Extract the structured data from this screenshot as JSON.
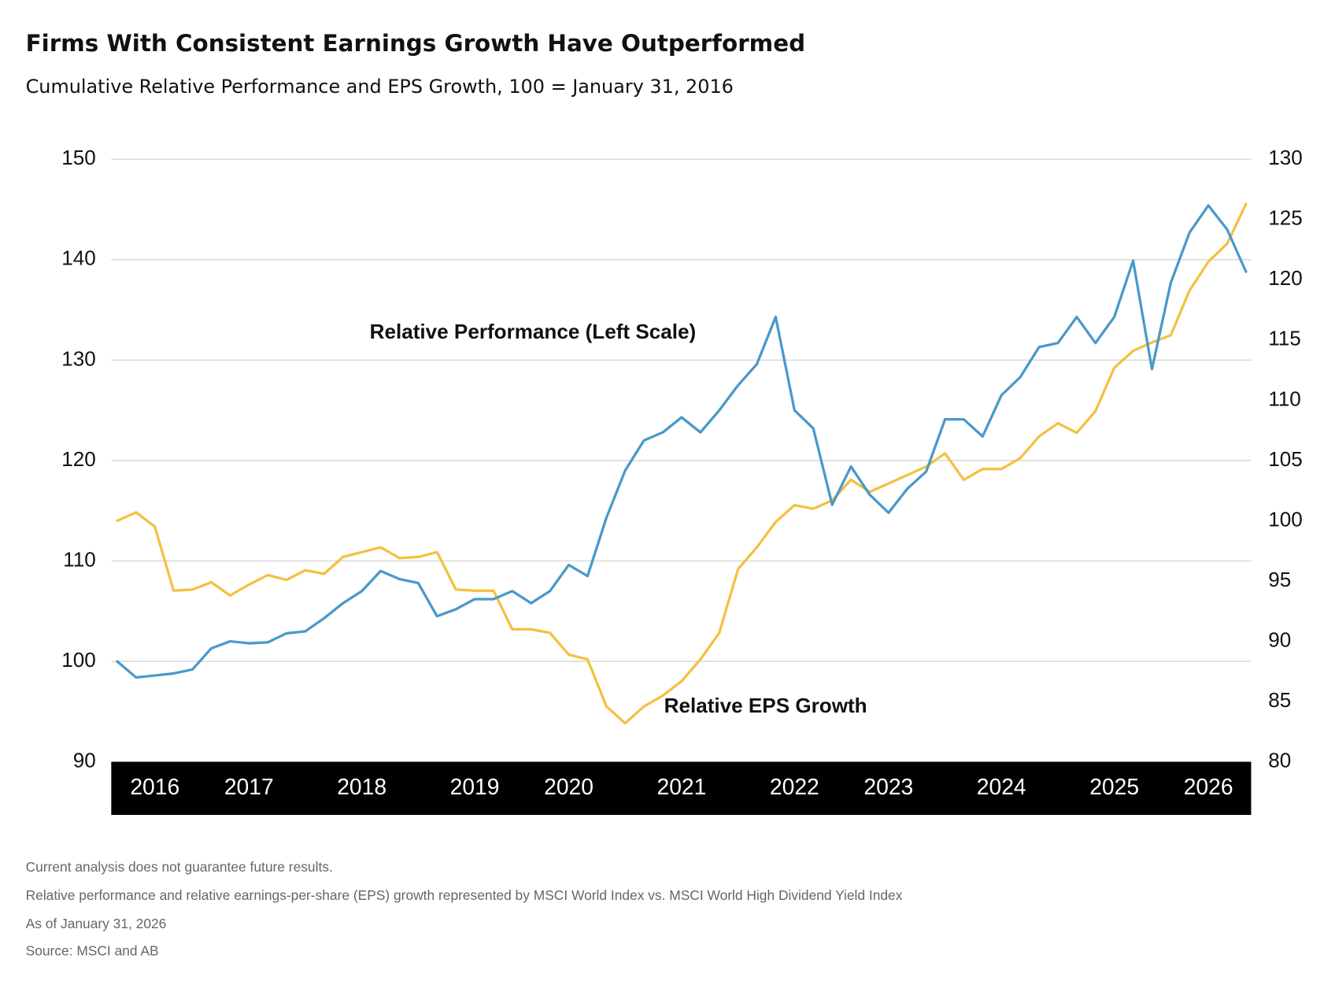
{
  "chart_data": {
    "type": "line",
    "title": "Firms With Consistent Earnings Growth Have Outperformed",
    "subtitle": "Cumulative Relative Performance and EPS Growth, 100 = January 31, 2016",
    "annotations": [
      "Relative Performance (Left Scale)",
      "Relative EPS Growth"
    ],
    "categories": [
      null,
      null,
      "2016",
      null,
      null,
      null,
      null,
      "2017",
      null,
      null,
      null,
      null,
      null,
      "2018",
      null,
      null,
      null,
      null,
      null,
      "2019",
      null,
      null,
      null,
      null,
      "2020",
      null,
      null,
      null,
      null,
      null,
      "2021",
      null,
      null,
      null,
      null,
      null,
      "2022",
      null,
      null,
      null,
      null,
      "2023",
      null,
      null,
      null,
      null,
      null,
      "2024",
      null,
      null,
      null,
      null,
      null,
      "2025",
      null,
      null,
      null,
      null,
      "2026",
      null,
      null
    ],
    "ylim": [
      90,
      150
    ],
    "yticks": [
      90,
      100,
      110,
      120,
      130,
      140,
      150
    ],
    "y2lim": [
      80,
      130
    ],
    "y2ticks": [
      80,
      85,
      90,
      95,
      100,
      105,
      110,
      115,
      120,
      125,
      130
    ],
    "grid": true,
    "series": [
      {
        "color": "#4a98cb",
        "values": [
          100,
          98.4,
          98.6,
          98.8,
          99.2,
          101.3,
          102,
          101.8,
          101.9,
          102.8,
          103,
          104.3,
          105.8,
          107,
          109,
          108.2,
          107.8,
          104.5,
          105.2,
          106.2,
          106.2,
          107,
          105.8,
          107,
          109.6,
          108.5,
          114.3,
          119,
          122,
          122.8,
          124.3,
          122.8,
          125,
          127.5,
          129.6,
          134.3,
          125,
          123.2,
          115.6,
          119.4,
          116.6,
          114.8,
          117.2,
          118.9,
          124.1,
          124.1,
          122.4,
          126.5,
          128.3,
          131.3,
          131.7,
          134.3,
          131.7,
          134.3,
          139.9,
          129.1,
          137.7,
          142.7,
          145.4,
          143,
          138.8
        ]
      },
      {
        "color": "#f5c040",
        "axis": "y2",
        "values": [
          100,
          100.7,
          99.5,
          94.2,
          94.3,
          94.9,
          93.8,
          94.7,
          95.5,
          95.1,
          95.9,
          95.6,
          97,
          97.4,
          97.8,
          96.9,
          97,
          97.4,
          94.3,
          94.2,
          94.2,
          91,
          91,
          90.7,
          88.9,
          88.5,
          84.6,
          83.2,
          84.6,
          85.5,
          86.7,
          88.5,
          90.7,
          96,
          97.8,
          99.9,
          101.3,
          101,
          101.7,
          103.4,
          102.4,
          103.1,
          103.8,
          104.5,
          105.6,
          103.4,
          104.3,
          104.3,
          105.2,
          107,
          108.1,
          107.3,
          109.1,
          112.7,
          114.1,
          114.8,
          115.4,
          119.1,
          121.5,
          123,
          126.3
        ]
      }
    ],
    "notes": [
      "Current analysis does not guarantee future results.",
      "Relative performance and relative earnings-per-share (EPS) growth represented by MSCI World Index vs. MSCI World High Dividend Yield Index",
      "As of January 31, 2026",
      "Source: MSCI and AB"
    ]
  }
}
